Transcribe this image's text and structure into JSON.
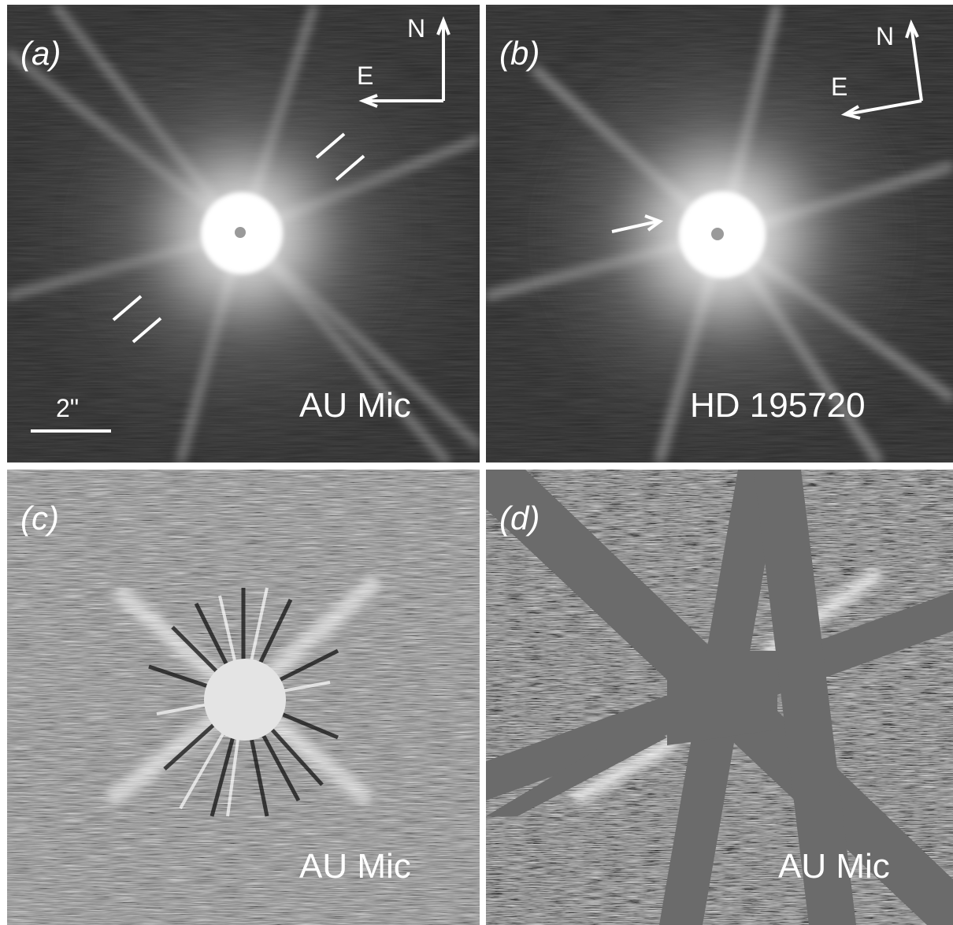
{
  "figure": {
    "panels": [
      {
        "id": "a",
        "label": "(a)",
        "target": "AU Mic",
        "north_label": "N",
        "east_label": "E",
        "scale_label": "2\""
      },
      {
        "id": "b",
        "label": "(b)",
        "target": "HD 195720",
        "north_label": "N",
        "east_label": "E"
      },
      {
        "id": "c",
        "label": "(c)",
        "target": "AU Mic"
      },
      {
        "id": "d",
        "label": "(d)",
        "target": "AU Mic"
      }
    ]
  }
}
